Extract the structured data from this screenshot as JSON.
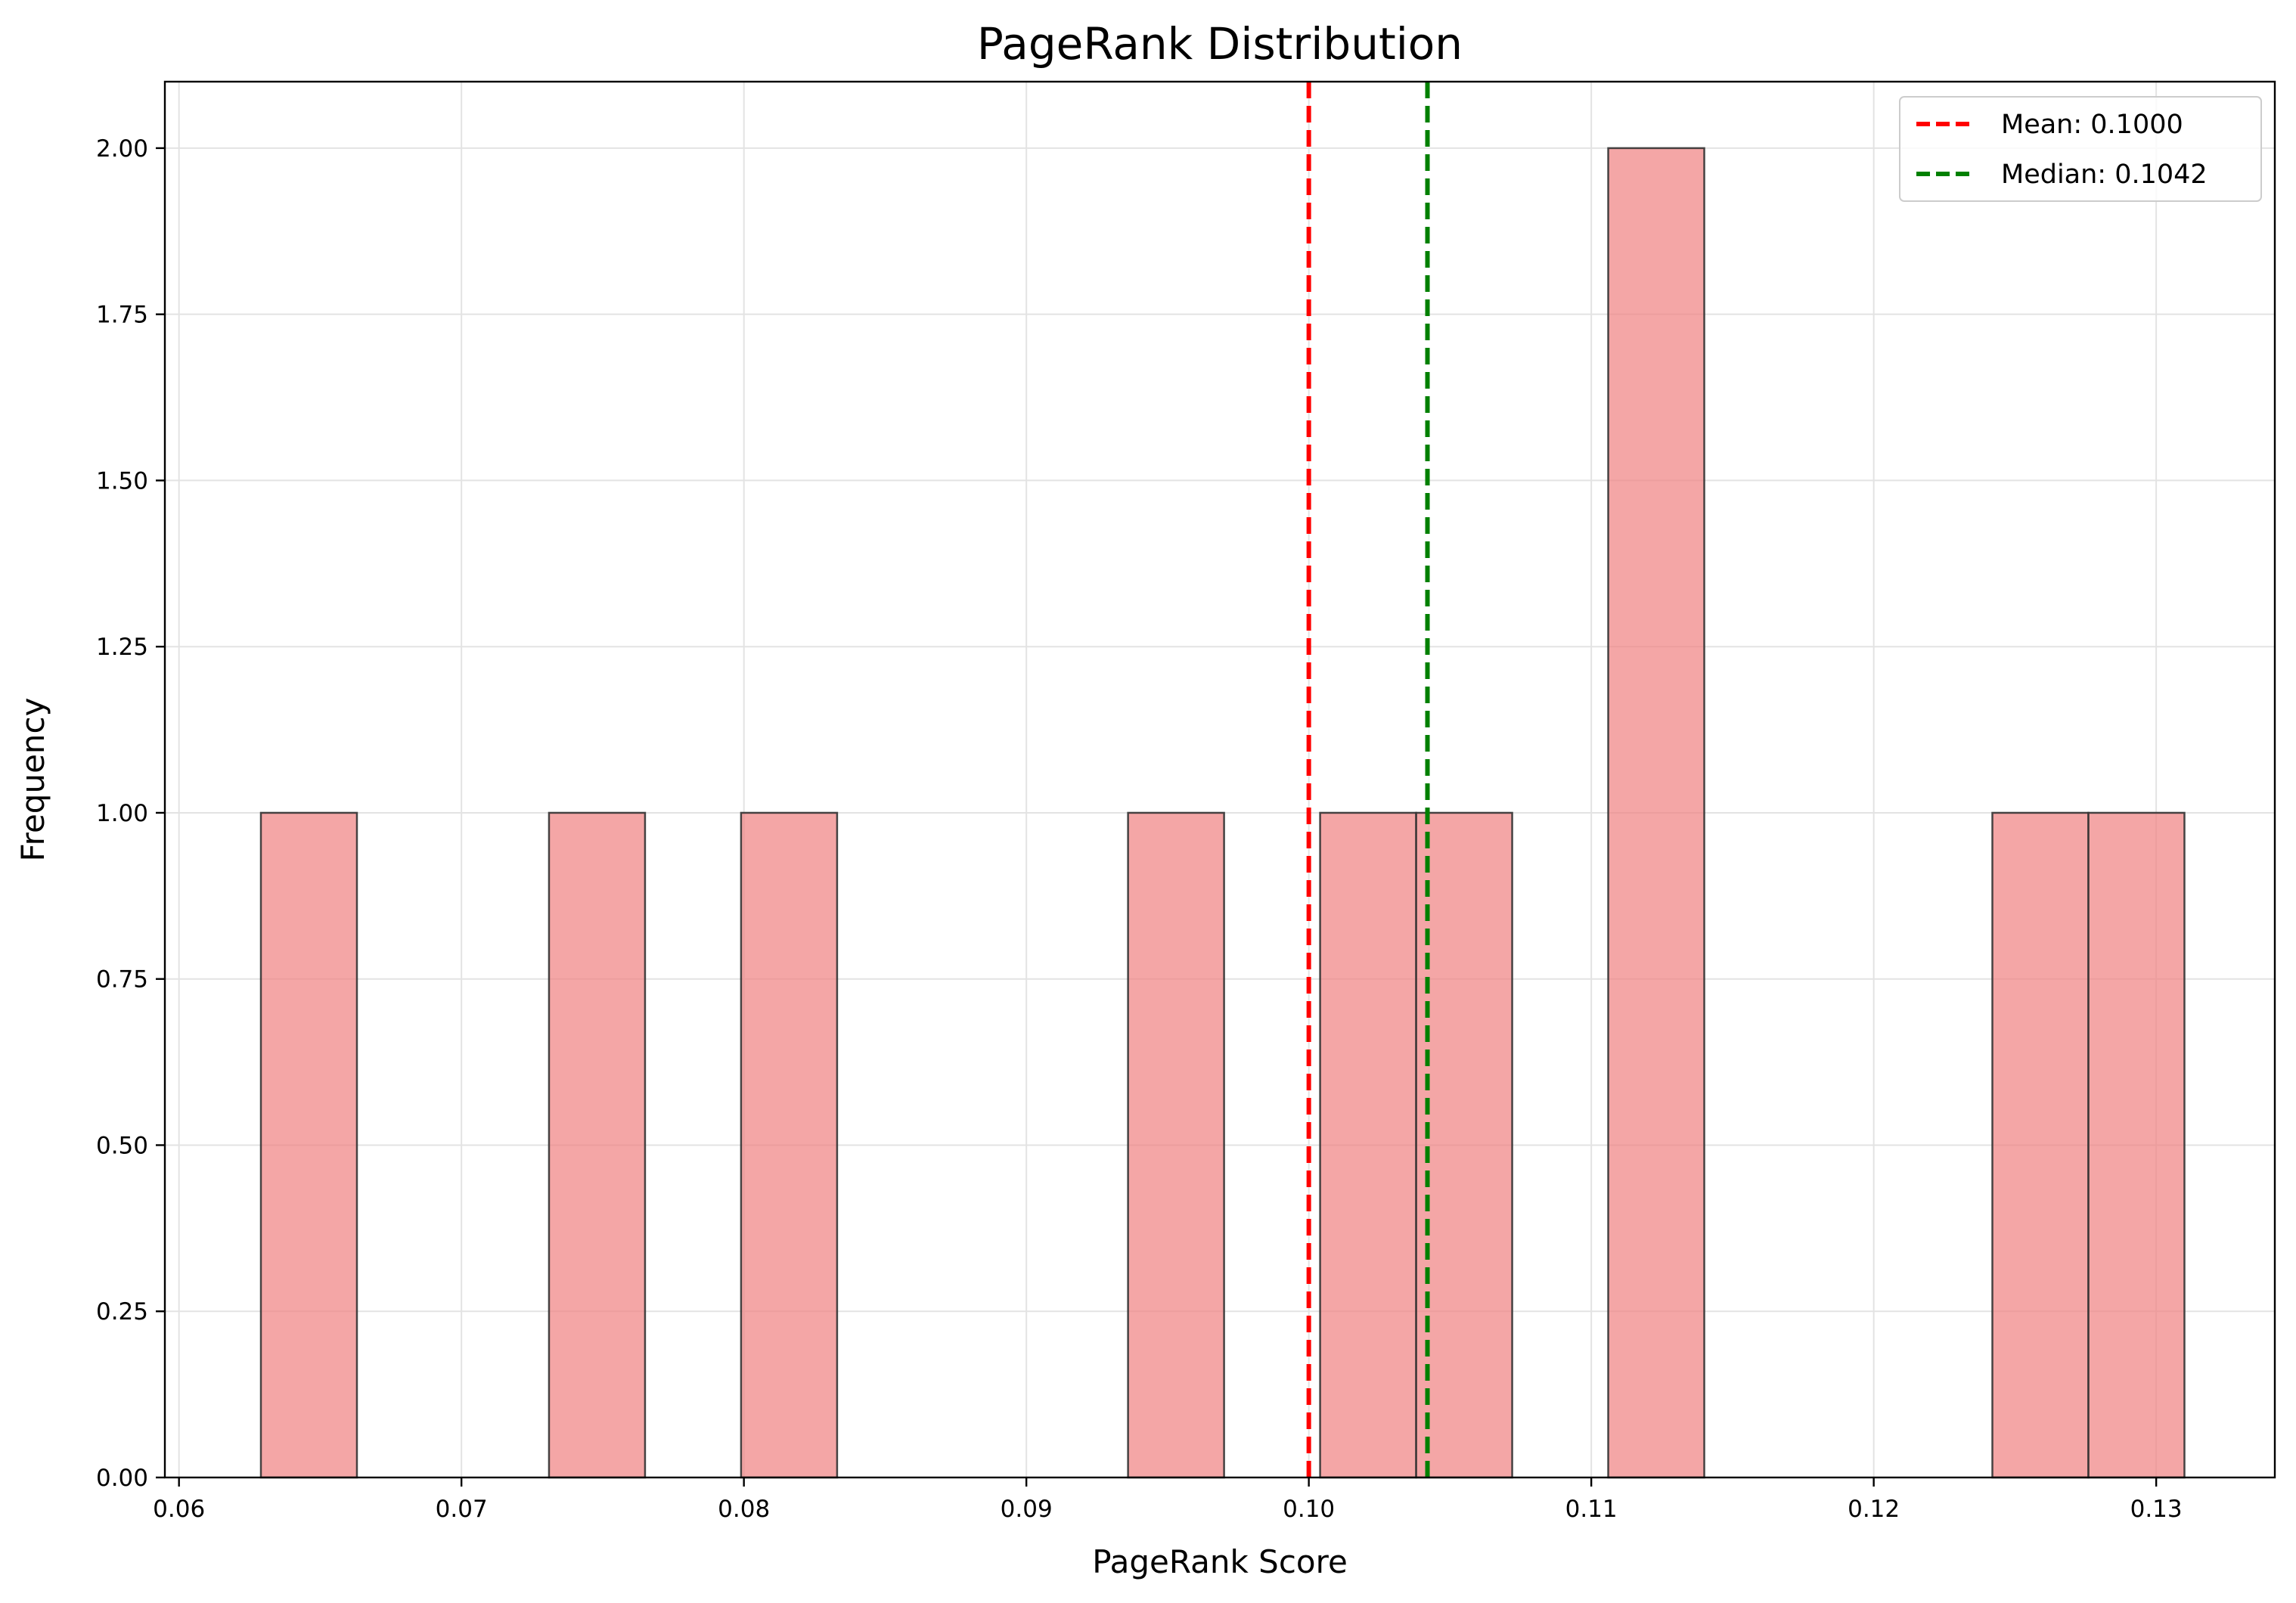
{
  "chart_data": {
    "type": "bar",
    "title": "PageRank Distribution",
    "xlabel": "PageRank Score",
    "ylabel": "Frequency",
    "xlim": [
      0.0595,
      0.1342
    ],
    "ylim": [
      0,
      2.1
    ],
    "xticks": [
      0.06,
      0.07,
      0.08,
      0.09,
      0.1,
      0.11,
      0.12,
      0.13
    ],
    "xtick_labels": [
      "0.06",
      "0.07",
      "0.08",
      "0.09",
      "0.10",
      "0.11",
      "0.12",
      "0.13"
    ],
    "yticks": [
      0,
      0.25,
      0.5,
      0.75,
      1.0,
      1.25,
      1.5,
      1.75,
      2.0
    ],
    "ytick_labels": [
      "0.00",
      "0.25",
      "0.50",
      "0.75",
      "1.00",
      "1.25",
      "1.50",
      "1.75",
      "2.00"
    ],
    "grid": true,
    "legend_position": "top-right",
    "bar_color": "#f08080",
    "bins": [
      {
        "x0": 0.0629,
        "x1": 0.0663,
        "count": 1
      },
      {
        "x0": 0.0731,
        "x1": 0.0765,
        "count": 1
      },
      {
        "x0": 0.0799,
        "x1": 0.0833,
        "count": 1
      },
      {
        "x0": 0.0936,
        "x1": 0.097,
        "count": 1
      },
      {
        "x0": 0.1004,
        "x1": 0.1038,
        "count": 1
      },
      {
        "x0": 0.1038,
        "x1": 0.1072,
        "count": 1
      },
      {
        "x0": 0.1106,
        "x1": 0.114,
        "count": 2
      },
      {
        "x0": 0.1242,
        "x1": 0.1276,
        "count": 1
      },
      {
        "x0": 0.1276,
        "x1": 0.131,
        "count": 1
      }
    ],
    "reference_lines": [
      {
        "label": "Mean: 0.1000",
        "x": 0.1,
        "color": "#ff0000",
        "style": "dashed"
      },
      {
        "label": "Median: 0.1042",
        "x": 0.1042,
        "color": "#008000",
        "style": "dashed"
      }
    ]
  }
}
